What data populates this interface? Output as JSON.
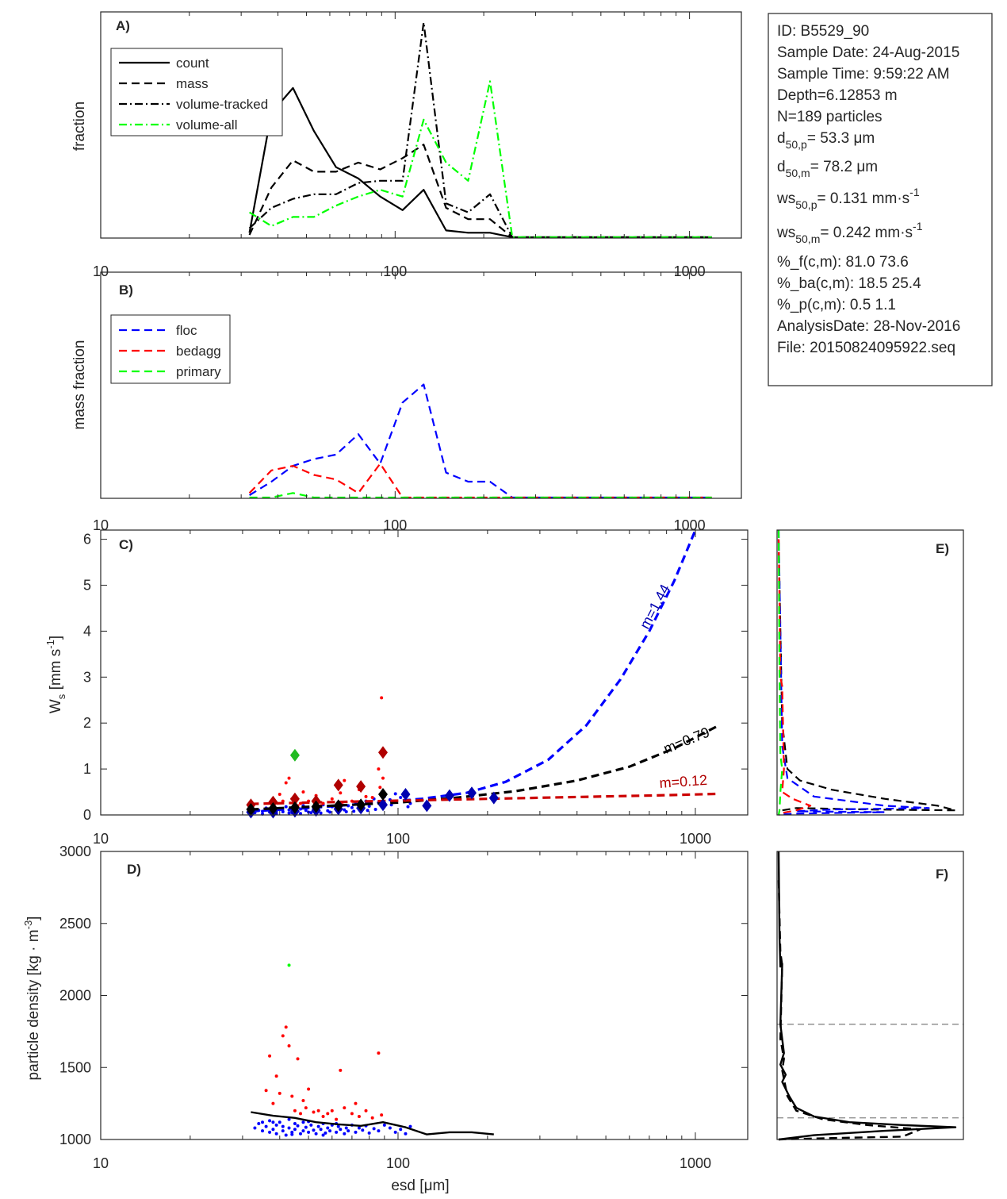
{
  "info_box": {
    "lines": [
      "ID: B5529_90",
      "Sample Date: 24-Aug-2015",
      "Sample Time:  9:59:22 AM",
      "Depth=6.12853 m",
      "N=189 particles",
      "%_f(c,m): 81.0 73.6",
      "%_ba(c,m): 18.5 25.4",
      "%_p(c,m): 0.5 1.1",
      "AnalysisDate: 28-Nov-2016",
      "File: 20150824095922.seq"
    ],
    "d50p": {
      "base": "d",
      "sub": "50,p",
      "value": "=  53.3 μm"
    },
    "d50m": {
      "base": "d",
      "sub": "50,m",
      "value": "=  78.2 μm"
    },
    "ws50p": {
      "base": "ws",
      "sub": "50,p",
      "value": "= 0.131 mm·s",
      "sup": "-1"
    },
    "ws50m": {
      "base": "ws",
      "sub": "50,m",
      "value": "= 0.242 mm·s",
      "sup": "-1"
    }
  },
  "colors": {
    "floc": "#0000ff",
    "bedagg": "#ff0000",
    "primary": "#00ff00",
    "black": "#000000",
    "dark_red": "#b00000",
    "dark_blue": "#0000b0",
    "green_marker": "#22bb22",
    "grey": "#888888"
  },
  "chart_data": [
    {
      "panel": "A)",
      "type": "line",
      "xscale": "log",
      "xlim": [
        10,
        1500
      ],
      "ylim": [
        0,
        1
      ],
      "ylabel": "fraction",
      "x_ticks": [
        "10",
        "100",
        "1000"
      ],
      "legend_position": "top-left",
      "x": [
        32,
        38,
        45,
        53,
        63,
        75,
        89,
        106,
        125,
        149,
        177,
        210,
        250,
        300,
        355,
        420,
        500,
        600,
        710,
        845,
        1000,
        1190
      ],
      "series": [
        {
          "name": "count",
          "style": "solid",
          "color": "#000000",
          "values": [
            0.02,
            0.55,
            0.66,
            0.47,
            0.31,
            0.26,
            0.18,
            0.12,
            0.21,
            0.03,
            0.02,
            0.02,
            0,
            0,
            0,
            0,
            0,
            0,
            0,
            0,
            0,
            0
          ]
        },
        {
          "name": "mass",
          "style": "dash",
          "color": "#000000",
          "values": [
            0.01,
            0.22,
            0.34,
            0.29,
            0.29,
            0.33,
            0.3,
            0.35,
            0.41,
            0.13,
            0.08,
            0.08,
            0,
            0,
            0,
            0,
            0,
            0,
            0,
            0,
            0,
            0
          ]
        },
        {
          "name": "volume-tracked",
          "style": "dashdot",
          "color": "#000000",
          "values": [
            0.04,
            0.13,
            0.17,
            0.19,
            0.19,
            0.24,
            0.25,
            0.25,
            0.95,
            0.15,
            0.11,
            0.19,
            0,
            0,
            0,
            0,
            0,
            0,
            0,
            0,
            0,
            0
          ]
        },
        {
          "name": "volume-all",
          "style": "dashdot",
          "color": "#00ff00",
          "values": [
            0.11,
            0.05,
            0.09,
            0.09,
            0.14,
            0.18,
            0.21,
            0.18,
            0.52,
            0.33,
            0.25,
            0.69,
            0,
            0,
            0,
            0,
            0,
            0,
            0,
            0,
            0,
            0
          ]
        }
      ]
    },
    {
      "panel": "B)",
      "type": "line",
      "xscale": "log",
      "xlim": [
        10,
        1500
      ],
      "ylim": [
        0,
        1
      ],
      "ylabel": "mass fraction",
      "x_ticks": [
        "10",
        "100",
        "1000"
      ],
      "legend_position": "top-left",
      "x": [
        32,
        38,
        45,
        53,
        63,
        75,
        89,
        106,
        125,
        149,
        177,
        210,
        250,
        300,
        355,
        420,
        500,
        600,
        710,
        845,
        1000,
        1190
      ],
      "series": [
        {
          "name": "floc",
          "style": "dash",
          "color": "#0000ff",
          "values": [
            0.01,
            0.07,
            0.14,
            0.17,
            0.19,
            0.28,
            0.15,
            0.42,
            0.5,
            0.11,
            0.07,
            0.07,
            0,
            0,
            0,
            0,
            0,
            0,
            0,
            0,
            0,
            0
          ]
        },
        {
          "name": "bedagg",
          "style": "dash",
          "color": "#ff0000",
          "values": [
            0.02,
            0.12,
            0.14,
            0.1,
            0.08,
            0.02,
            0.15,
            0.0,
            0,
            0,
            0,
            0,
            0,
            0,
            0,
            0,
            0,
            0,
            0,
            0,
            0,
            0
          ]
        },
        {
          "name": "primary",
          "style": "dash",
          "color": "#00ff00",
          "values": [
            0,
            0,
            0.02,
            0,
            0,
            0,
            0,
            0,
            0,
            0,
            0,
            0,
            0,
            0,
            0,
            0,
            0,
            0,
            0,
            0,
            0,
            0
          ]
        }
      ]
    },
    {
      "panel": "C)",
      "type": "scatter",
      "xscale": "log",
      "xlim": [
        10,
        1500
      ],
      "ylim": [
        0,
        6.2
      ],
      "ylabel": {
        "base": "W",
        "sub": "s",
        "mid": " [mm s",
        "sup": "-1",
        "end": "]"
      },
      "x_ticks": [
        "10",
        "100",
        "1000"
      ],
      "y_ticks": [
        "0",
        "1",
        "2",
        "3",
        "4",
        "5",
        "6"
      ],
      "fit_lines": [
        {
          "label": "m=1.44",
          "color": "#0000ff",
          "label_color": "#0000b0",
          "x": [
            32,
            50,
            80,
            120,
            170,
            230,
            320,
            430,
            560,
            700,
            850,
            1000
          ],
          "values": [
            0.08,
            0.15,
            0.25,
            0.35,
            0.48,
            0.72,
            1.2,
            1.95,
            2.95,
            4.0,
            5.1,
            6.2
          ]
        },
        {
          "label": "m=0.79",
          "color": "#000000",
          "label_color": "#000000",
          "x": [
            32,
            60,
            100,
            160,
            250,
            400,
            600,
            850,
            1200
          ],
          "values": [
            0.12,
            0.2,
            0.27,
            0.38,
            0.52,
            0.75,
            1.05,
            1.45,
            1.95
          ]
        },
        {
          "label": "m=0.12",
          "color": "#cc0000",
          "label_color": "#b00000",
          "x": [
            32,
            60,
            100,
            200,
            400,
            800,
            1200
          ],
          "values": [
            0.24,
            0.28,
            0.31,
            0.35,
            0.39,
            0.43,
            0.46
          ]
        }
      ],
      "diamonds": [
        {
          "color": "#0000b0",
          "x": [
            32,
            38,
            45,
            53,
            63,
            75,
            89,
            106,
            125,
            149,
            177,
            210
          ],
          "values": [
            0.06,
            0.06,
            0.08,
            0.1,
            0.13,
            0.15,
            0.22,
            0.45,
            0.2,
            0.42,
            0.48,
            0.37
          ]
        },
        {
          "color": "#b00000",
          "x": [
            32,
            38,
            45,
            53,
            63,
            75,
            89
          ],
          "values": [
            0.22,
            0.28,
            0.35,
            0.3,
            0.65,
            0.62,
            1.36
          ]
        },
        {
          "color": "#000000",
          "x": [
            32,
            38,
            45,
            53,
            63,
            75,
            89
          ],
          "values": [
            0.12,
            0.14,
            0.16,
            0.18,
            0.2,
            0.22,
            0.45
          ]
        },
        {
          "color": "#22bb22",
          "x": [
            45
          ],
          "values": [
            1.3
          ]
        }
      ],
      "red_points": {
        "x": [
          40,
          42,
          43,
          44,
          46,
          48,
          50,
          53,
          56,
          60,
          64,
          66,
          70,
          74,
          78,
          82,
          86,
          88,
          89,
          87,
          75,
          65,
          55,
          47,
          41
        ],
        "values": [
          0.45,
          0.7,
          0.8,
          0.35,
          0.2,
          0.5,
          0.3,
          0.42,
          0.25,
          0.35,
          0.48,
          0.75,
          0.3,
          0.55,
          0.4,
          0.38,
          1.0,
          2.55,
          0.8,
          0.6,
          0.28,
          0.22,
          0.2,
          0.25,
          0.3
        ]
      },
      "blue_points": {
        "x": [
          33,
          34,
          35,
          36,
          37,
          38,
          39,
          40,
          41,
          42,
          43,
          44,
          45,
          46,
          47,
          48,
          49,
          50,
          52,
          54,
          56,
          58,
          60,
          62,
          64,
          66,
          68,
          70,
          72,
          74,
          76,
          78,
          80,
          83,
          86,
          90,
          94,
          98,
          102,
          106,
          110,
          35,
          39,
          43,
          47,
          51,
          55,
          59,
          63,
          67,
          71,
          75,
          79,
          84,
          95,
          108
        ],
        "values": [
          0.05,
          0.1,
          0.08,
          0.15,
          0.06,
          0.12,
          0.09,
          0.14,
          0.07,
          0.18,
          0.11,
          0.05,
          0.16,
          0.08,
          0.13,
          0.2,
          0.1,
          0.06,
          0.15,
          0.12,
          0.22,
          0.09,
          0.18,
          0.14,
          0.25,
          0.11,
          0.2,
          0.16,
          0.28,
          0.13,
          0.24,
          0.3,
          0.19,
          0.35,
          0.27,
          0.4,
          0.33,
          0.46,
          0.38,
          0.3,
          0.25,
          0.02,
          0.03,
          0.04,
          0.03,
          0.05,
          0.04,
          0.06,
          0.05,
          0.07,
          0.08,
          0.09,
          0.1,
          0.12,
          0.22,
          0.18
        ]
      }
    },
    {
      "panel": "D)",
      "type": "scatter",
      "xscale": "log",
      "xlim": [
        10,
        1500
      ],
      "ylim": [
        1000,
        3000
      ],
      "xlabel": {
        "base": "esd [",
        "unit": "μm",
        "end": "]"
      },
      "ylabel": {
        "base": "particle density [kg · m",
        "sup": "-3",
        "end": "]"
      },
      "x_ticks": [
        "10",
        "100",
        "1000"
      ],
      "y_ticks": [
        "1000",
        "1500",
        "2000",
        "2500",
        "3000"
      ],
      "median_line": {
        "x": [
          32,
          38,
          45,
          53,
          63,
          75,
          89,
          106,
          125,
          149,
          177,
          210
        ],
        "values": [
          1190,
          1165,
          1150,
          1120,
          1105,
          1095,
          1120,
          1085,
          1035,
          1050,
          1050,
          1035
        ]
      },
      "green_points": {
        "x": [
          43
        ],
        "values": [
          2210
        ]
      },
      "red_points": {
        "x": [
          36,
          37,
          38,
          39,
          40,
          41,
          42,
          43,
          44,
          45,
          46,
          47,
          48,
          49,
          50,
          52,
          54,
          56,
          58,
          60,
          62,
          64,
          66,
          70,
          72,
          74,
          78,
          82,
          86,
          88
        ],
        "values": [
          1340,
          1580,
          1250,
          1440,
          1320,
          1720,
          1780,
          1650,
          1300,
          1200,
          1560,
          1180,
          1270,
          1220,
          1350,
          1190,
          1200,
          1160,
          1180,
          1200,
          1140,
          1480,
          1220,
          1180,
          1250,
          1160,
          1200,
          1150,
          1600,
          1170
        ]
      },
      "blue_points": {
        "x": [
          33,
          34,
          35,
          35,
          36,
          37,
          37,
          38,
          39,
          39,
          40,
          41,
          41,
          42,
          43,
          43,
          44,
          45,
          45,
          46,
          47,
          48,
          48,
          49,
          50,
          51,
          52,
          53,
          54,
          55,
          56,
          57,
          58,
          59,
          60,
          62,
          63,
          64,
          66,
          67,
          68,
          70,
          72,
          74,
          76,
          78,
          80,
          83,
          86,
          90,
          94,
          98,
          102,
          106,
          110,
          38,
          44,
          50,
          56,
          62
        ],
        "values": [
          1080,
          1110,
          1060,
          1120,
          1090,
          1050,
          1130,
          1070,
          1100,
          1040,
          1120,
          1060,
          1090,
          1030,
          1140,
          1080,
          1050,
          1110,
          1070,
          1095,
          1040,
          1120,
          1060,
          1085,
          1050,
          1100,
          1065,
          1040,
          1090,
          1070,
          1110,
          1045,
          1080,
          1060,
          1100,
          1050,
          1090,
          1070,
          1040,
          1080,
          1060,
          1100,
          1050,
          1080,
          1065,
          1095,
          1045,
          1075,
          1060,
          1100,
          1080,
          1050,
          1070,
          1040,
          1090,
          1120,
          1035,
          1125,
          1030,
          1110
        ]
      }
    },
    {
      "panel": "E)",
      "type": "line",
      "ylim": [
        0,
        6.2
      ],
      "series": [
        {
          "name": "black",
          "style": "dash",
          "color": "#000000",
          "x": [
            0.0,
            0.01,
            0.02,
            0.05,
            0.12,
            0.3,
            0.6,
            0.9,
            1.0,
            0.5,
            0.1,
            0.02,
            0.01,
            0.0
          ],
          "values": [
            6.0,
            4.0,
            2.0,
            1.0,
            0.75,
            0.55,
            0.35,
            0.2,
            0.1,
            0.12,
            0.15,
            0.1,
            0.05,
            0.0
          ]
        },
        {
          "name": "floc",
          "style": "dash",
          "color": "#0000ff",
          "x": [
            0.0,
            0.01,
            0.02,
            0.05,
            0.2,
            0.6,
            0.85,
            0.3,
            0.1,
            0.6,
            0.1,
            0.01,
            0.0
          ],
          "values": [
            6.2,
            4.0,
            1.5,
            0.8,
            0.4,
            0.2,
            0.15,
            0.12,
            0.08,
            0.06,
            0.03,
            0.01,
            0.0
          ]
        },
        {
          "name": "bedagg",
          "style": "dash",
          "color": "#ff0000",
          "x": [
            0.0,
            0.01,
            0.02,
            0.03,
            0.02,
            0.08,
            0.18,
            0.1,
            0.03,
            0.01,
            0.0
          ],
          "values": [
            6.0,
            3.0,
            2.8,
            1.0,
            0.5,
            0.35,
            0.2,
            0.1,
            0.05,
            0.02,
            0.0
          ]
        },
        {
          "name": "primary",
          "style": "dash",
          "color": "#00ff00",
          "x": [
            0.0,
            0.005,
            0.01,
            0.02,
            0.01,
            0.005,
            0.0
          ],
          "values": [
            6.2,
            3.0,
            1.3,
            1.0,
            0.5,
            0.1,
            0.0
          ]
        }
      ]
    },
    {
      "panel": "F)",
      "type": "line",
      "ylim": [
        1000,
        3000
      ],
      "ref_lines": [
        1150,
        1800
      ],
      "series": [
        {
          "name": "solid",
          "style": "solid",
          "color": "#000000",
          "x": [
            0.0,
            0.005,
            0.01,
            0.02,
            0.01,
            0.03,
            0.01,
            0.04,
            0.02,
            0.06,
            0.1,
            0.2,
            0.4,
            0.7,
            1.0,
            0.6,
            0.2,
            0.0
          ],
          "values": [
            3000,
            2400,
            2200,
            2220,
            1800,
            1600,
            1520,
            1450,
            1400,
            1300,
            1220,
            1160,
            1120,
            1100,
            1085,
            1060,
            1030,
            1000
          ]
        },
        {
          "name": "dashed",
          "style": "dash",
          "color": "#000000",
          "x": [
            0.0,
            0.01,
            0.02,
            0.01,
            0.03,
            0.02,
            0.05,
            0.1,
            0.25,
            0.5,
            0.8,
            0.7,
            0.3,
            0.0
          ],
          "values": [
            2800,
            2300,
            2210,
            1700,
            1560,
            1480,
            1300,
            1200,
            1140,
            1100,
            1070,
            1020,
            1010,
            1000
          ]
        }
      ]
    }
  ]
}
